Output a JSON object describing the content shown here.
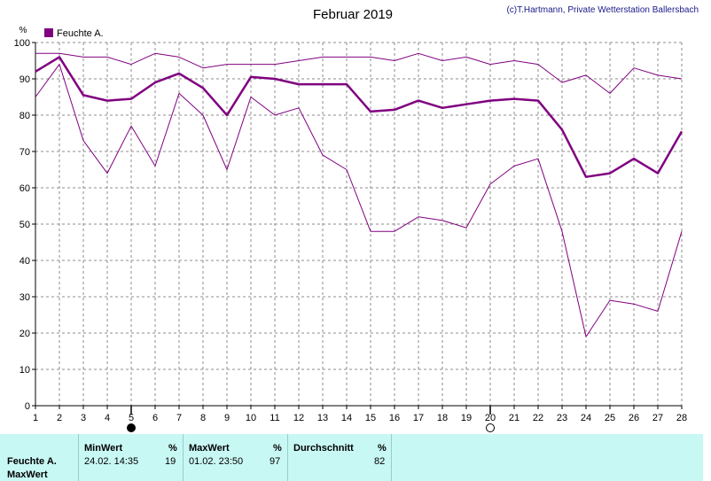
{
  "chart_data": {
    "type": "line",
    "title": "Februar 2019",
    "credit": "(c)T.Hartmann, Private Wetterstation Ballersbach",
    "ylabel": "%",
    "ylim": [
      0,
      100
    ],
    "yticks": [
      0,
      10,
      20,
      30,
      40,
      50,
      60,
      70,
      80,
      90,
      100
    ],
    "x": [
      1,
      2,
      3,
      4,
      5,
      6,
      7,
      8,
      9,
      10,
      11,
      12,
      13,
      14,
      15,
      16,
      17,
      18,
      19,
      20,
      21,
      22,
      23,
      24,
      25,
      26,
      27,
      28
    ],
    "xlim": [
      1,
      28
    ],
    "grid": true,
    "legend": {
      "position": "top-left",
      "label": "Feuchte A.",
      "color": "#800080"
    },
    "moon_markers": {
      "new_moon_day": 5,
      "full_moon_day": 20
    },
    "series": [
      {
        "role": "max",
        "color": "#800080",
        "width": 1,
        "values": [
          97,
          97,
          96,
          96,
          94,
          97,
          96,
          93,
          94,
          94,
          94,
          95,
          96,
          96,
          96,
          95,
          97,
          95,
          96,
          94,
          95,
          94,
          89,
          91,
          86,
          93,
          91,
          90
        ]
      },
      {
        "name": "Feuchte A.",
        "role": "avg",
        "color": "#800080",
        "width": 2.5,
        "values": [
          92,
          96,
          85.5,
          84,
          84.5,
          89,
          91.5,
          87.5,
          80,
          90.5,
          90,
          88.5,
          88.5,
          88.5,
          81,
          81.5,
          84,
          82,
          83,
          84,
          84.5,
          84,
          76,
          63,
          64,
          68,
          64,
          75.5
        ]
      },
      {
        "role": "min",
        "color": "#800080",
        "width": 1,
        "values": [
          85,
          94,
          73,
          64,
          77,
          66,
          86,
          80,
          65,
          85,
          80,
          82,
          69,
          65,
          48,
          48,
          52,
          51,
          49,
          61,
          66,
          68,
          48,
          19,
          29,
          28,
          26,
          48
        ]
      }
    ]
  },
  "stats_table": {
    "row_label": "Feuchte A.",
    "row_label2": "MaxWert",
    "min_header": "MinWert",
    "min_unit": "%",
    "min_time": "24.02.  14:35",
    "min_value": "19",
    "max_header": "MaxWert",
    "max_unit": "%",
    "max_time": "01.02.  23:50",
    "max_value": "97",
    "avg_header": "Durchschnitt",
    "avg_unit": "%",
    "avg_value": "82"
  }
}
